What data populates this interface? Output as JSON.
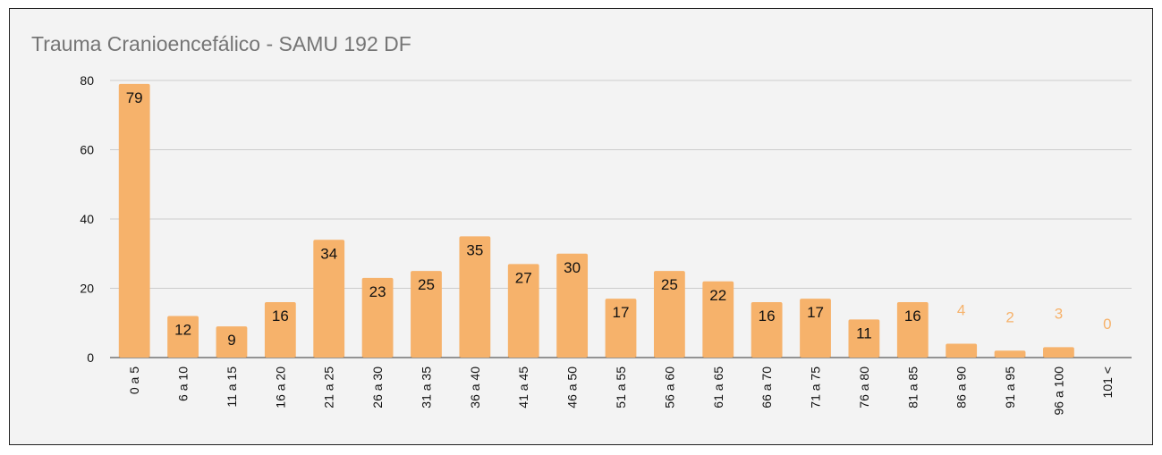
{
  "chart_data": {
    "type": "bar",
    "title": "Trauma Cranioencefálico - SAMU 192 DF",
    "xlabel": "",
    "ylabel": "",
    "ylim": [
      0,
      80
    ],
    "yticks": [
      0,
      20,
      40,
      60,
      80
    ],
    "grid": true,
    "legend": "none",
    "categories": [
      "0 a 5",
      "6 a 10",
      "11 a 15",
      "16 a 20",
      "21 a 25",
      "26 a 30",
      "31 a 35",
      "36 a 40",
      "41 a 45",
      "46 a 50",
      "51 a 55",
      "56 a 60",
      "61 a 65",
      "66 a 70",
      "71 a 75",
      "76 a 80",
      "81 a 85",
      "86 a 90",
      "91 a 95",
      "96 a 100",
      "101 <"
    ],
    "values": [
      79,
      12,
      9,
      16,
      34,
      23,
      25,
      35,
      27,
      30,
      17,
      25,
      22,
      16,
      17,
      11,
      16,
      4,
      2,
      3,
      0
    ],
    "colors": {
      "bar": "#f6b26b",
      "label_inside": "#111111",
      "label_outside": "#f6b26b",
      "grid": "#cccccc",
      "axis": "#333333"
    }
  }
}
